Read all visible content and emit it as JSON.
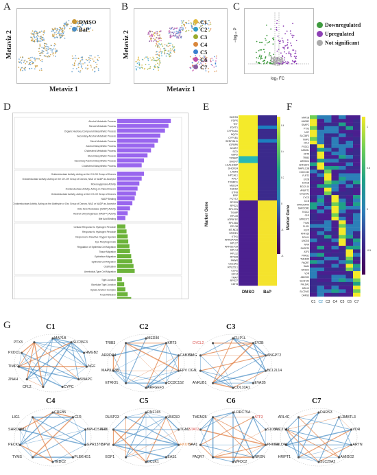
{
  "panels": {
    "A": {
      "letter": "A",
      "xlabel": "Metaviz 1",
      "ylabel": "Metaviz 2",
      "legend": [
        {
          "label": "DMSO",
          "color": "#c79533"
        },
        {
          "label": "BaP",
          "color": "#4a8ec5"
        }
      ],
      "tags": [
        "BaP_DMSO",
        "DMSO_BaP",
        "BaP_DMSO"
      ]
    },
    "B": {
      "letter": "B",
      "xlabel": "Metaviz 1",
      "ylabel": "Metaviz 2",
      "legend": [
        {
          "label": "C1",
          "color": "#e0b83a"
        },
        {
          "label": "C2",
          "color": "#2f9cc7"
        },
        {
          "label": "C3",
          "color": "#9aaa2e"
        },
        {
          "label": "C4",
          "color": "#d9873c"
        },
        {
          "label": "C5",
          "color": "#3a7fd0"
        },
        {
          "label": "C6",
          "color": "#c14fa8"
        },
        {
          "label": "C7",
          "color": "#8a5b9e"
        }
      ]
    },
    "C": {
      "letter": "C",
      "xlabel": "log₂ FC",
      "ylabel": "−log₁₀ P",
      "legend": [
        {
          "label": "Downregulated",
          "color": "#3e9b3e"
        },
        {
          "label": "Upregulated",
          "color": "#8d3fb5"
        },
        {
          "label": "Not significant",
          "color": "#aaaaaa"
        }
      ]
    },
    "D": {
      "letter": "D",
      "groups": [
        {
          "color": "#9966ee",
          "terms": [
            "Alcohol Metabolic Process",
            "Steroid Metabolic Process",
            "Organic Hydroxy Compound Biosynthetic Process",
            "Secondary Alcohol Metabolic Process",
            "Sterol Metabolic Process",
            "Alcohol Biosynthetic Process",
            "Cholesterol Metabolic Process",
            "Sterol Biosynthetic Process",
            "Secondary Alcohol Biosynthetic Process",
            "Cholesterol Biosynthetic Process"
          ],
          "values": [
            92,
            88,
            82,
            74,
            70,
            64,
            58,
            52,
            46,
            42
          ]
        },
        {
          "color": "#9966ee",
          "terms": [
            "Oxidoreductase Activity, Acting on the CH-OH Group of Donors",
            "Oxidoreductase Activity, Acting on the CH-OH Group of Donors, NAD or NADP as Acceptor",
            "Monooxygenase Activity",
            "Oxidoreductase Activity, Acting on Paired Donors",
            "Oxidoreductase Activity, Acting on the CH-CH Group of Donors",
            "NADP Binding",
            "Oxidoreductase Activity, Acting on the Aldehyde or Oxo Group of Donors, NAD or NADP as Acceptor",
            "Aldo-Keto Reductase (NADP) Activity",
            "Alcohol Dehydrogenase (NADP+) Activity",
            "Bile Acid Binding"
          ],
          "values": [
            46,
            42,
            38,
            35,
            32,
            30,
            26,
            22,
            18,
            14
          ]
        },
        {
          "color": "#6cb33a",
          "terms": [
            "Cellular Response to Hydrogen Peroxide",
            "Response to Hydrogen Peroxide",
            "Response to Reactive Oxygen Species",
            "Eye Morphogenesis",
            "Regulation of Epithelial Cell Migration",
            "Tissue Migration",
            "Epithelium Migration",
            "Epithelial Cell Migration",
            "Ossification",
            "Ameboidal-Type Cell Migration"
          ],
          "values": [
            14,
            16,
            18,
            19,
            21,
            22,
            24,
            26,
            28,
            30
          ]
        },
        {
          "color": "#6cb33a",
          "terms": [
            "Tight Junction",
            "Bicellular Tight Junction",
            "Apical Junction Complex",
            "Focal Adhesion",
            "Cell-Substrate Junction",
            "Collagen-Containing Extracellular Matrix"
          ],
          "values": [
            8,
            12,
            14,
            18,
            24,
            36
          ]
        }
      ]
    },
    "E": {
      "letter": "E",
      "ylabel": "Marker Gene",
      "cols": [
        "DMSO",
        "BaP"
      ],
      "genes": [
        "DHRS3",
        "FDPS",
        "TKT",
        "FDFT1",
        "CYP51A1",
        "NQO1",
        "CYP1B1",
        "SERPINH1",
        "IGFBP6",
        "ACAT2",
        "SCD",
        "G6PD",
        "TIPARP",
        "DHCR7",
        "LGALS3BP",
        "DHCR24",
        "LTBP3",
        "HPCAL1",
        "RPL7",
        "TXNRD1",
        "MED24",
        "FADS2",
        "ETFB",
        "EBP",
        "PCYT2",
        "RPS29",
        "RPS21",
        "RPL37A",
        "TXNIP",
        "RPL39",
        "ATP5F1E",
        "RPL36A",
        "RPL38",
        "MT-ND3",
        "SPIRE1",
        "KTN1",
        "ARHGAP26",
        "RPL27",
        "ARHGEF39",
        "RPL14",
        "RPL12",
        "RPS28",
        "PAWR",
        "COL6A1",
        "RPL22L1",
        "CCN1",
        "EIF3J",
        "TMA7",
        "RPS27",
        "CDH4"
      ],
      "scale": [
        "0.6",
        "0.4",
        "0.2",
        "0",
        "-0.2",
        "-0.4"
      ]
    },
    "F": {
      "letter": "F",
      "ylabel": "Marker Gene",
      "cols": [
        "C1",
        "C2",
        "C3",
        "C4",
        "C5",
        "C6",
        "C7"
      ],
      "genes": [
        "MAP1B",
        "HMGB2",
        "SNAPC",
        "PTX3",
        "NGF",
        "SLC35F3",
        "TIMP2",
        "CFL2",
        "PXDC1",
        "CAB39L",
        "KRT5",
        "TRIB3",
        "ARRDC4",
        "ARFGEF3",
        "MAPILC3B",
        "CCDC152",
        "FLRT2",
        "EV2B",
        "EVA1B",
        "BCL2L14",
        "ANGPT2",
        "COL10A1",
        "CYCS",
        "DCN",
        "MPHOSPH9",
        "SHROOM1",
        "TEDC2",
        "C1R",
        "GPR137C",
        "TYMS",
        "FLIG1",
        "KLF5",
        "RNF165",
        "DCLK1",
        "UNC5D",
        "NPW",
        "DUSP23",
        "ATF3",
        "PHKG1",
        "TMEM25",
        "PAQR7",
        "SAA1",
        "WFDC2",
        "VDR",
        "AMIGO2",
        "SLC37A2",
        "PHLDA1",
        "ARL4C",
        "SLC29A2",
        "DHRS3"
      ],
      "scale": [
        "1",
        "0.5",
        "0",
        "-0.5"
      ]
    },
    "G": {
      "letter": "G",
      "networks": [
        {
          "title": "C1",
          "genes": [
            {
              "t": "MAP1B",
              "c": ""
            },
            {
              "t": "SLC35F3",
              "c": ""
            },
            {
              "t": "HMGB2",
              "c": ""
            },
            {
              "t": "NGF",
              "c": ""
            },
            {
              "t": "SNAPC",
              "c": ""
            },
            {
              "t": "CYPC",
              "c": ""
            },
            {
              "t": "CFL2",
              "c": ""
            },
            {
              "t": "ZNAH",
              "c": ""
            },
            {
              "t": "TIMP2",
              "c": ""
            },
            {
              "t": "PXDC1",
              "c": ""
            },
            {
              "t": "PTX3",
              "c": ""
            }
          ]
        },
        {
          "title": "C2",
          "genes": [
            {
              "t": "MED30",
              "c": ""
            },
            {
              "t": "KRT5",
              "c": ""
            },
            {
              "t": "CAB39L",
              "c": ""
            },
            {
              "t": "EPV",
              "c": ""
            },
            {
              "t": "CCDC152",
              "c": ""
            },
            {
              "t": "ARFGEF3",
              "c": ""
            },
            {
              "t": "ETRIO1",
              "c": ""
            },
            {
              "t": "MAPILC3B",
              "c": ""
            },
            {
              "t": "ARRDC4",
              "c": ""
            },
            {
              "t": "TRIB3",
              "c": ""
            }
          ]
        },
        {
          "title": "C3",
          "genes": [
            {
              "t": "FLIP1L",
              "c": ""
            },
            {
              "t": "EV2B",
              "c": ""
            },
            {
              "t": "ANGPT2",
              "c": ""
            },
            {
              "t": "BCL2L14",
              "c": ""
            },
            {
              "t": "EVA1B",
              "c": ""
            },
            {
              "t": "COL10A1",
              "c": ""
            },
            {
              "t": "ANKUB1",
              "c": ""
            },
            {
              "t": "DGN",
              "c": ""
            },
            {
              "t": "OMG",
              "c": ""
            },
            {
              "t": "CYCL2",
              "c": "red"
            }
          ]
        },
        {
          "title": "C4",
          "genes": [
            {
              "t": "CREB5",
              "c": ""
            },
            {
              "t": "C1R",
              "c": ""
            },
            {
              "t": "MPHOSPH9",
              "c": ""
            },
            {
              "t": "GPR137C",
              "c": ""
            },
            {
              "t": "PLEKHG1",
              "c": ""
            },
            {
              "t": "TEDC2",
              "c": ""
            },
            {
              "t": "TYMS",
              "c": ""
            },
            {
              "t": "PECK1",
              "c": ""
            },
            {
              "t": "SHROOM1",
              "c": ""
            },
            {
              "t": "LIG1",
              "c": ""
            }
          ]
        },
        {
          "title": "C5",
          "genes": [
            {
              "t": "RNF165",
              "c": ""
            },
            {
              "t": "UNC5D",
              "c": ""
            },
            {
              "t": "TGM2",
              "c": ""
            },
            {
              "t": "HKUK4",
              "c": "or"
            },
            {
              "t": "EAS1",
              "c": ""
            },
            {
              "t": "DCLK1",
              "c": ""
            },
            {
              "t": "EGF1",
              "c": ""
            },
            {
              "t": "NPW",
              "c": ""
            },
            {
              "t": "EF6",
              "c": ""
            },
            {
              "t": "DUSP23",
              "c": ""
            }
          ]
        },
        {
          "title": "C6",
          "genes": [
            {
              "t": "LRRC75A",
              "c": ""
            },
            {
              "t": "ATF3",
              "c": "red"
            },
            {
              "t": "S100A6",
              "c": ""
            },
            {
              "t": "PHKG1",
              "c": ""
            },
            {
              "t": "NRGN",
              "c": ""
            },
            {
              "t": "WFDC2",
              "c": ""
            },
            {
              "t": "PAQR7",
              "c": ""
            },
            {
              "t": "SAA1",
              "c": ""
            },
            {
              "t": "STAT2",
              "c": "red"
            },
            {
              "t": "TMEM25",
              "c": ""
            }
          ]
        },
        {
          "title": "C7",
          "genes": [
            {
              "t": "DHRS3",
              "c": ""
            },
            {
              "t": "L3MBTL3",
              "c": ""
            },
            {
              "t": "VDR",
              "c": ""
            },
            {
              "t": "ARTN",
              "c": ""
            },
            {
              "t": "AMIGO2",
              "c": ""
            },
            {
              "t": "SLC29A2",
              "c": ""
            },
            {
              "t": "HRIPT1",
              "c": ""
            },
            {
              "t": "PHLDA1",
              "c": ""
            },
            {
              "t": "SLC37A2",
              "c": ""
            },
            {
              "t": "ARL4C",
              "c": ""
            }
          ]
        }
      ]
    }
  }
}
